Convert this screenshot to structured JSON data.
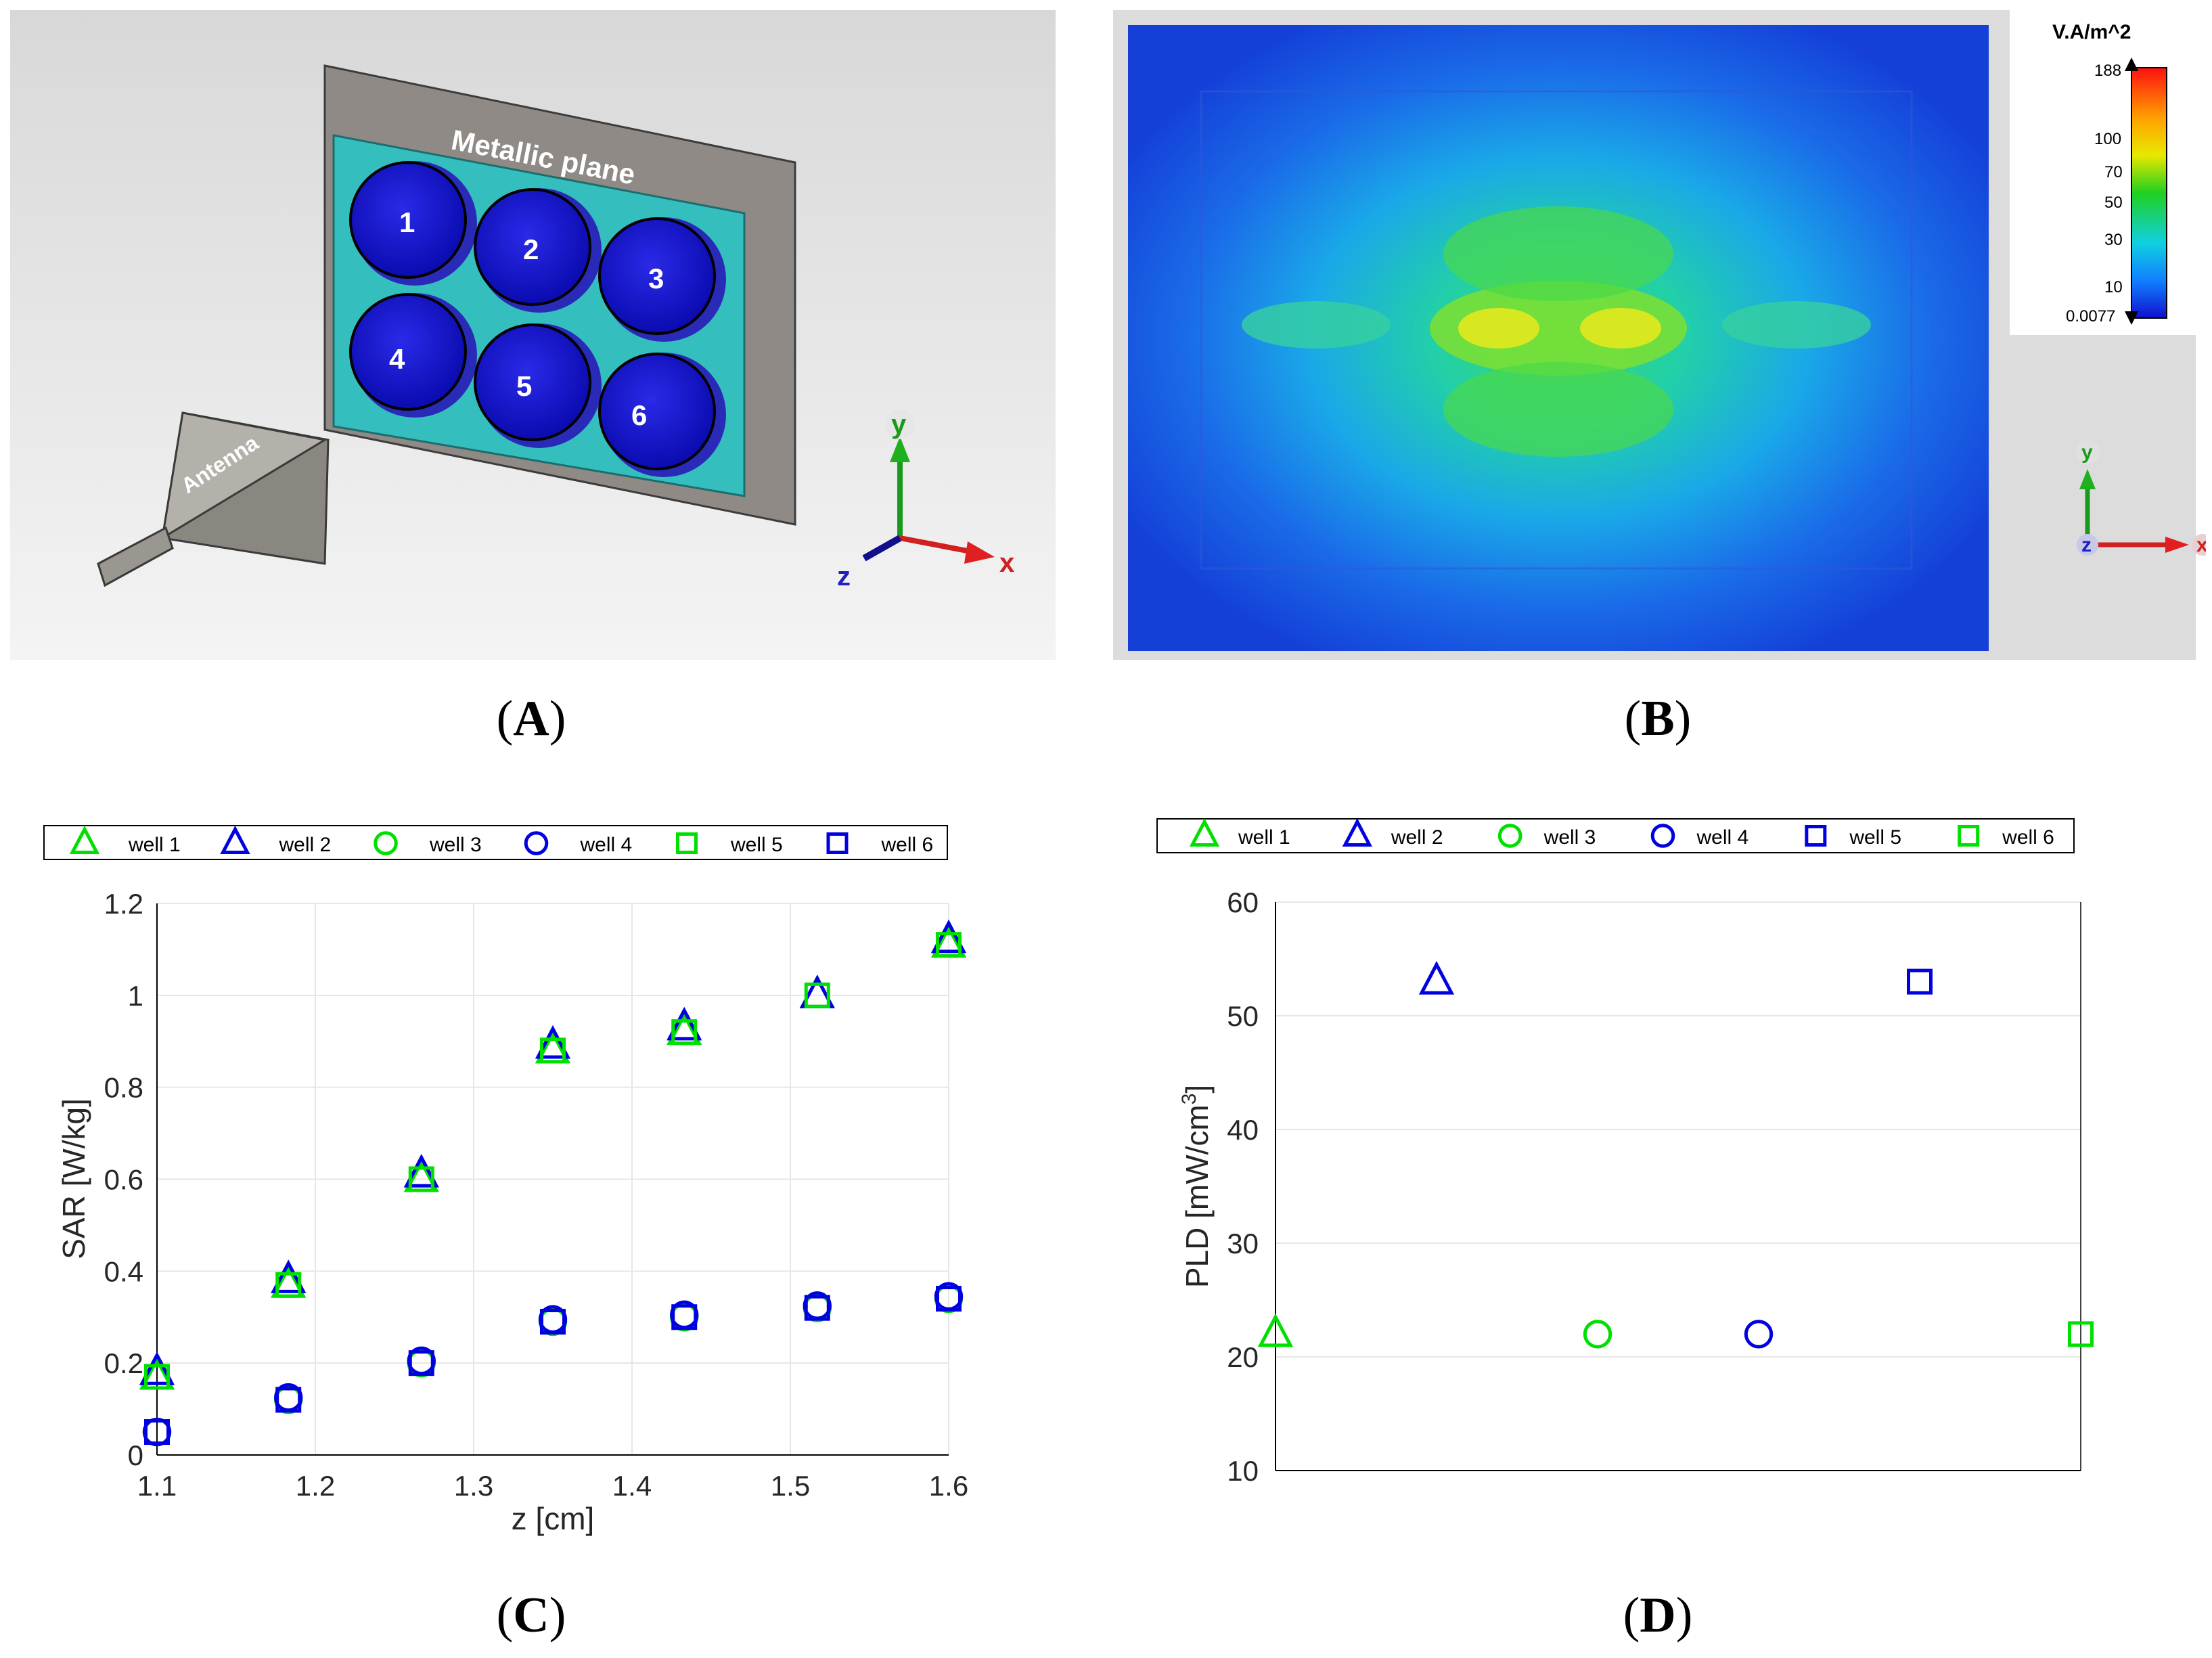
{
  "panel_a": {
    "plane_label": "Metallic plane",
    "antenna_label": "Antenna",
    "wells": [
      "1",
      "2",
      "3",
      "4",
      "5",
      "6"
    ],
    "axis_labels": {
      "x": "x",
      "y": "y",
      "z": "z"
    }
  },
  "panel_b": {
    "colorbar_unit": "V.A/m^2",
    "colorbar_ticks": [
      "188",
      "100",
      "70",
      "50",
      "30",
      "10",
      "0.0077"
    ],
    "axis_labels": {
      "x": "x",
      "y": "y",
      "z": "z"
    }
  },
  "captions": {
    "a": "A",
    "b": "B",
    "c": "C",
    "d": "D"
  },
  "colors": {
    "green": "#00e000",
    "blue": "#0000e0",
    "grid": "#e6e6e6"
  },
  "chart_data": [
    {
      "type": "scatter",
      "title": "",
      "xlabel": "z [cm]",
      "ylabel": "SAR [W/kg]",
      "xlim": [
        1.1,
        1.6
      ],
      "ylim": [
        0,
        1.2
      ],
      "xticks": [
        "1.1",
        "1.2",
        "1.3",
        "1.4",
        "1.5",
        "1.6"
      ],
      "yticks": [
        "0",
        "0.2",
        "0.4",
        "0.6",
        "0.8",
        "1",
        "1.2"
      ],
      "legend": [
        "well 1",
        "well 2",
        "well 3",
        "well 4",
        "well 5",
        "well 6"
      ],
      "grid": true,
      "series": [
        {
          "name": "well 1",
          "marker": "triangle",
          "color": "#00e000",
          "x": [
            1.1,
            1.183,
            1.267,
            1.35,
            1.433,
            1.517,
            1.6
          ],
          "y": [
            0.17,
            0.37,
            0.6,
            0.88,
            0.92,
            1.0,
            1.11
          ]
        },
        {
          "name": "well 2",
          "marker": "triangle",
          "color": "#0000e0",
          "x": [
            1.1,
            1.183,
            1.267,
            1.35,
            1.433,
            1.517,
            1.6
          ],
          "y": [
            0.18,
            0.38,
            0.61,
            0.89,
            0.93,
            1.0,
            1.12
          ]
        },
        {
          "name": "well 3",
          "marker": "circle",
          "color": "#00e000",
          "x": [
            1.1,
            1.183,
            1.267,
            1.35,
            1.433,
            1.517,
            1.6
          ],
          "y": [
            0.05,
            0.12,
            0.2,
            0.29,
            0.3,
            0.32,
            0.34
          ]
        },
        {
          "name": "well 4",
          "marker": "circle",
          "color": "#0000e0",
          "x": [
            1.1,
            1.183,
            1.267,
            1.35,
            1.433,
            1.517,
            1.6
          ],
          "y": [
            0.05,
            0.125,
            0.205,
            0.295,
            0.305,
            0.325,
            0.345
          ]
        },
        {
          "name": "well 5",
          "marker": "square",
          "color": "#00e000",
          "x": [
            1.1,
            1.183,
            1.267,
            1.35,
            1.433,
            1.517,
            1.6
          ],
          "y": [
            0.17,
            0.37,
            0.6,
            0.88,
            0.92,
            1.0,
            1.11
          ]
        },
        {
          "name": "well 6",
          "marker": "square",
          "color": "#0000e0",
          "x": [
            1.1,
            1.183,
            1.267,
            1.35,
            1.433,
            1.517,
            1.6
          ],
          "y": [
            0.05,
            0.12,
            0.2,
            0.29,
            0.3,
            0.32,
            0.34
          ]
        }
      ]
    },
    {
      "type": "scatter",
      "title": "",
      "xlabel": "",
      "ylabel": "PLD [mW/cm3]",
      "ylabel_base": "PLD [mW/cm",
      "ylabel_sup": "3",
      "ylabel_end": "]",
      "ylim": [
        10,
        60
      ],
      "yticks": [
        "10",
        "20",
        "30",
        "40",
        "50",
        "60"
      ],
      "legend": [
        "well 1",
        "well 2",
        "well 3",
        "well 4",
        "well 5",
        "well 6"
      ],
      "grid": true,
      "series": [
        {
          "name": "well 1",
          "marker": "triangle",
          "color": "#00e000",
          "x": 1,
          "y": 22
        },
        {
          "name": "well 2",
          "marker": "triangle",
          "color": "#0000e0",
          "x": 2,
          "y": 53
        },
        {
          "name": "well 3",
          "marker": "circle",
          "color": "#00e000",
          "x": 3,
          "y": 22
        },
        {
          "name": "well 4",
          "marker": "circle",
          "color": "#0000e0",
          "x": 4,
          "y": 22
        },
        {
          "name": "well 5",
          "marker": "square",
          "color": "#0000e0",
          "x": 5,
          "y": 53
        },
        {
          "name": "well 6",
          "marker": "square",
          "color": "#00e000",
          "x": 6,
          "y": 22
        }
      ]
    }
  ]
}
